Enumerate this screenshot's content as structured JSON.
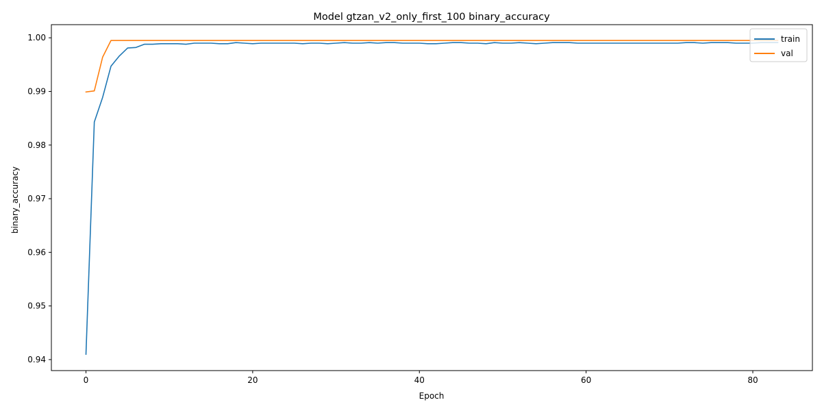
{
  "chart_data": {
    "type": "line",
    "title": "Model gtzan_v2_only_first_100 binary_accuracy",
    "xlabel": "Epoch",
    "ylabel": "binary_accuracy",
    "xlim": [
      -4.15,
      87.15
    ],
    "ylim": [
      0.93795,
      1.00245
    ],
    "xticks": [
      0,
      20,
      40,
      60,
      80
    ],
    "xtick_labels": [
      "0",
      "20",
      "40",
      "60",
      "80"
    ],
    "yticks": [
      0.94,
      0.95,
      0.96,
      0.97,
      0.98,
      0.99,
      1.0
    ],
    "ytick_labels": [
      "0.94",
      "0.95",
      "0.96",
      "0.97",
      "0.98",
      "0.99",
      "1.00"
    ],
    "grid": false,
    "legend_position": "upper right",
    "series": [
      {
        "name": "train",
        "color": "#1f77b4",
        "values": [
          0.941,
          0.9843,
          0.9889,
          0.9947,
          0.9966,
          0.9981,
          0.9982,
          0.9988,
          0.9988,
          0.9989,
          0.9989,
          0.9989,
          0.9988,
          0.999,
          0.999,
          0.999,
          0.9989,
          0.9989,
          0.9991,
          0.999,
          0.9989,
          0.999,
          0.999,
          0.999,
          0.999,
          0.999,
          0.9989,
          0.999,
          0.999,
          0.9989,
          0.999,
          0.9991,
          0.999,
          0.999,
          0.9991,
          0.999,
          0.9991,
          0.9991,
          0.999,
          0.999,
          0.999,
          0.9989,
          0.9989,
          0.999,
          0.9991,
          0.9991,
          0.999,
          0.999,
          0.9989,
          0.9991,
          0.999,
          0.999,
          0.9991,
          0.999,
          0.9989,
          0.999,
          0.9991,
          0.9991,
          0.9991,
          0.999,
          0.999,
          0.999,
          0.999,
          0.999,
          0.999,
          0.999,
          0.999,
          0.999,
          0.999,
          0.999,
          0.999,
          0.999,
          0.9991,
          0.9991,
          0.999,
          0.9991,
          0.9991,
          0.9991,
          0.999,
          0.999,
          0.999,
          0.9991,
          0.9991,
          0.9991
        ]
      },
      {
        "name": "val",
        "color": "#ff7f0e",
        "values": [
          0.9899,
          0.9901,
          0.9964,
          0.9995,
          0.9995,
          0.9995,
          0.9995,
          0.9995,
          0.9995,
          0.9995,
          0.9995,
          0.9995,
          0.9995,
          0.9995,
          0.9995,
          0.9995,
          0.9995,
          0.9995,
          0.9995,
          0.9995,
          0.9995,
          0.9995,
          0.9995,
          0.9995,
          0.9995,
          0.9995,
          0.9995,
          0.9995,
          0.9995,
          0.9995,
          0.9995,
          0.9995,
          0.9995,
          0.9995,
          0.9995,
          0.9995,
          0.9995,
          0.9995,
          0.9995,
          0.9995,
          0.9995,
          0.9995,
          0.9995,
          0.9995,
          0.9995,
          0.9995,
          0.9995,
          0.9995,
          0.9995,
          0.9995,
          0.9995,
          0.9995,
          0.9995,
          0.9995,
          0.9995,
          0.9995,
          0.9995,
          0.9995,
          0.9995,
          0.9995,
          0.9995,
          0.9995,
          0.9995,
          0.9995,
          0.9995,
          0.9995,
          0.9995,
          0.9995,
          0.9995,
          0.9995,
          0.9995,
          0.9995,
          0.9995,
          0.9995,
          0.9995,
          0.9995,
          0.9995,
          0.9995,
          0.9995,
          0.9995,
          0.9995,
          0.9995,
          0.9995,
          0.9995
        ]
      }
    ]
  }
}
